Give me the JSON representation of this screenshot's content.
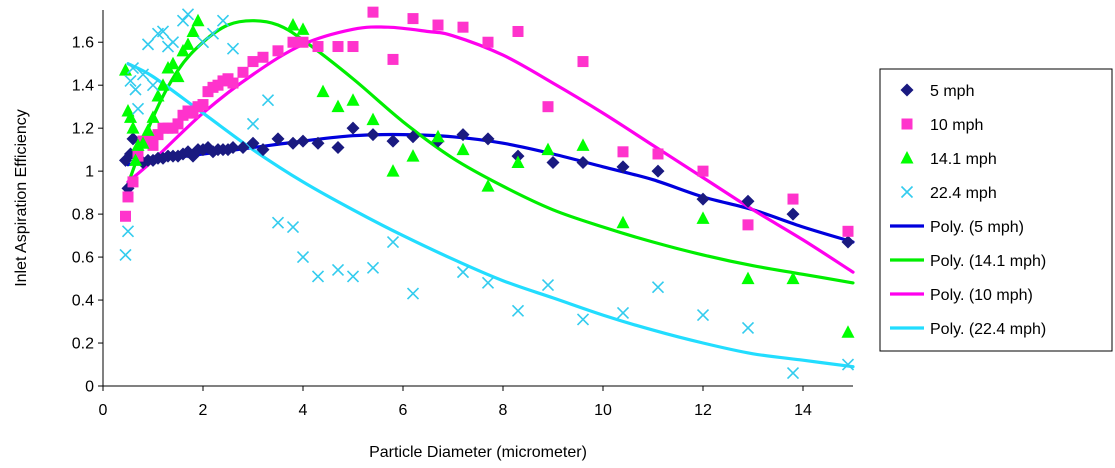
{
  "chart_data": {
    "type": "scatter",
    "xlabel": "Particle Diameter (micrometer)",
    "ylabel": "Inlet Aspiration Efficiency",
    "xlim": [
      0,
      15
    ],
    "ylim": [
      0,
      1.75
    ],
    "x_ticks": [
      0,
      2,
      4,
      6,
      8,
      10,
      12,
      14
    ],
    "x_tick_labels": [
      "0",
      "2",
      "4",
      "6",
      "8",
      "10",
      "12",
      "14"
    ],
    "y_ticks": [
      0,
      0.2,
      0.4,
      0.6,
      0.8,
      1.0,
      1.2,
      1.4,
      1.6
    ],
    "y_tick_labels": [
      "0",
      "0.2",
      "0.4",
      "0.6",
      "0.8",
      "1",
      "1.2",
      "1.4",
      "1.6"
    ],
    "grid": false,
    "legend_position": "right",
    "series": [
      {
        "name": "5 mph",
        "kind": "scatter",
        "marker": "diamond",
        "color": "#1a1a80",
        "points": [
          [
            0.45,
            1.05
          ],
          [
            0.5,
            0.92
          ],
          [
            0.55,
            1.08
          ],
          [
            0.6,
            1.15
          ],
          [
            0.7,
            1.06
          ],
          [
            0.8,
            1.04
          ],
          [
            0.9,
            1.05
          ],
          [
            1.0,
            1.05
          ],
          [
            1.1,
            1.06
          ],
          [
            1.2,
            1.06
          ],
          [
            1.3,
            1.07
          ],
          [
            1.4,
            1.07
          ],
          [
            1.5,
            1.07
          ],
          [
            1.6,
            1.08
          ],
          [
            1.7,
            1.09
          ],
          [
            1.8,
            1.07
          ],
          [
            1.9,
            1.1
          ],
          [
            2.0,
            1.1
          ],
          [
            2.1,
            1.11
          ],
          [
            2.2,
            1.09
          ],
          [
            2.3,
            1.1
          ],
          [
            2.4,
            1.1
          ],
          [
            2.5,
            1.1
          ],
          [
            2.6,
            1.11
          ],
          [
            2.8,
            1.11
          ],
          [
            3.0,
            1.13
          ],
          [
            3.2,
            1.1
          ],
          [
            3.5,
            1.15
          ],
          [
            3.8,
            1.13
          ],
          [
            4.0,
            1.14
          ],
          [
            4.3,
            1.13
          ],
          [
            4.7,
            1.11
          ],
          [
            5.0,
            1.2
          ],
          [
            5.4,
            1.17
          ],
          [
            5.8,
            1.14
          ],
          [
            6.2,
            1.16
          ],
          [
            6.7,
            1.14
          ],
          [
            7.2,
            1.17
          ],
          [
            7.7,
            1.15
          ],
          [
            8.3,
            1.07
          ],
          [
            9.0,
            1.04
          ],
          [
            9.6,
            1.04
          ],
          [
            10.4,
            1.02
          ],
          [
            11.1,
            1.0
          ],
          [
            12.0,
            0.87
          ],
          [
            12.9,
            0.86
          ],
          [
            13.8,
            0.8
          ],
          [
            14.9,
            0.67
          ]
        ]
      },
      {
        "name": "10 mph",
        "kind": "scatter",
        "marker": "square",
        "color": "#ff33cc",
        "points": [
          [
            0.45,
            0.79
          ],
          [
            0.5,
            0.88
          ],
          [
            0.6,
            0.95
          ],
          [
            0.7,
            1.07
          ],
          [
            0.8,
            1.14
          ],
          [
            0.9,
            1.15
          ],
          [
            1.0,
            1.12
          ],
          [
            1.1,
            1.17
          ],
          [
            1.2,
            1.2
          ],
          [
            1.3,
            1.2
          ],
          [
            1.4,
            1.2
          ],
          [
            1.5,
            1.22
          ],
          [
            1.6,
            1.26
          ],
          [
            1.7,
            1.28
          ],
          [
            1.8,
            1.27
          ],
          [
            1.9,
            1.3
          ],
          [
            2.0,
            1.31
          ],
          [
            2.1,
            1.37
          ],
          [
            2.2,
            1.39
          ],
          [
            2.3,
            1.4
          ],
          [
            2.4,
            1.42
          ],
          [
            2.5,
            1.43
          ],
          [
            2.6,
            1.41
          ],
          [
            2.8,
            1.46
          ],
          [
            3.0,
            1.51
          ],
          [
            3.2,
            1.53
          ],
          [
            3.5,
            1.56
          ],
          [
            3.8,
            1.6
          ],
          [
            4.0,
            1.6
          ],
          [
            4.3,
            1.58
          ],
          [
            4.7,
            1.58
          ],
          [
            5.0,
            1.58
          ],
          [
            5.4,
            1.74
          ],
          [
            5.8,
            1.52
          ],
          [
            6.2,
            1.71
          ],
          [
            6.7,
            1.68
          ],
          [
            7.2,
            1.67
          ],
          [
            7.7,
            1.6
          ],
          [
            8.3,
            1.65
          ],
          [
            8.9,
            1.3
          ],
          [
            9.6,
            1.51
          ],
          [
            10.4,
            1.09
          ],
          [
            11.1,
            1.08
          ],
          [
            12.0,
            1.0
          ],
          [
            12.9,
            0.75
          ],
          [
            13.8,
            0.87
          ],
          [
            14.9,
            0.72
          ]
        ]
      },
      {
        "name": "14.1 mph",
        "kind": "scatter",
        "marker": "triangle",
        "color": "#00ff00",
        "points": [
          [
            0.45,
            1.47
          ],
          [
            0.5,
            1.28
          ],
          [
            0.55,
            1.25
          ],
          [
            0.6,
            1.2
          ],
          [
            0.65,
            1.05
          ],
          [
            0.7,
            1.12
          ],
          [
            0.8,
            1.13
          ],
          [
            0.9,
            1.19
          ],
          [
            1.0,
            1.25
          ],
          [
            1.1,
            1.35
          ],
          [
            1.2,
            1.4
          ],
          [
            1.3,
            1.48
          ],
          [
            1.4,
            1.5
          ],
          [
            1.5,
            1.44
          ],
          [
            1.6,
            1.56
          ],
          [
            1.7,
            1.59
          ],
          [
            1.8,
            1.65
          ],
          [
            1.9,
            1.7
          ],
          [
            3.8,
            1.68
          ],
          [
            4.0,
            1.66
          ],
          [
            4.4,
            1.37
          ],
          [
            4.7,
            1.3
          ],
          [
            5.0,
            1.33
          ],
          [
            5.4,
            1.24
          ],
          [
            5.8,
            1.0
          ],
          [
            6.2,
            1.07
          ],
          [
            6.7,
            1.16
          ],
          [
            7.2,
            1.1
          ],
          [
            7.7,
            0.93
          ],
          [
            8.3,
            1.04
          ],
          [
            8.9,
            1.1
          ],
          [
            9.6,
            1.12
          ],
          [
            10.4,
            0.76
          ],
          [
            12.0,
            0.78
          ],
          [
            12.9,
            0.5
          ],
          [
            13.8,
            0.5
          ],
          [
            14.9,
            0.25
          ]
        ]
      },
      {
        "name": "22.4 mph",
        "kind": "scatter",
        "marker": "x",
        "color": "#33ccee",
        "points": [
          [
            0.45,
            0.61
          ],
          [
            0.5,
            0.72
          ],
          [
            0.55,
            1.42
          ],
          [
            0.6,
            1.48
          ],
          [
            0.65,
            1.38
          ],
          [
            0.7,
            1.29
          ],
          [
            0.8,
            1.45
          ],
          [
            0.9,
            1.59
          ],
          [
            1.0,
            1.4
          ],
          [
            1.1,
            1.64
          ],
          [
            1.2,
            1.65
          ],
          [
            1.3,
            1.58
          ],
          [
            1.4,
            1.6
          ],
          [
            1.6,
            1.7
          ],
          [
            1.7,
            1.73
          ],
          [
            2.0,
            1.6
          ],
          [
            2.2,
            1.64
          ],
          [
            2.4,
            1.7
          ],
          [
            2.6,
            1.57
          ],
          [
            3.0,
            1.22
          ],
          [
            3.3,
            1.33
          ],
          [
            3.5,
            0.76
          ],
          [
            3.8,
            0.74
          ],
          [
            4.0,
            0.6
          ],
          [
            4.3,
            0.51
          ],
          [
            4.7,
            0.54
          ],
          [
            5.0,
            0.51
          ],
          [
            5.4,
            0.55
          ],
          [
            5.8,
            0.67
          ],
          [
            6.2,
            0.43
          ],
          [
            7.2,
            0.53
          ],
          [
            7.7,
            0.48
          ],
          [
            8.3,
            0.35
          ],
          [
            8.9,
            0.47
          ],
          [
            9.6,
            0.31
          ],
          [
            10.4,
            0.34
          ],
          [
            11.1,
            0.46
          ],
          [
            12.0,
            0.33
          ],
          [
            12.9,
            0.27
          ],
          [
            13.8,
            0.06
          ],
          [
            14.9,
            0.1
          ]
        ]
      },
      {
        "name": "Poly. (5 mph)",
        "kind": "trendline",
        "color": "#0000dd",
        "points": [
          [
            0.5,
            1.03
          ],
          [
            1.0,
            1.05
          ],
          [
            2.0,
            1.08
          ],
          [
            3.0,
            1.11
          ],
          [
            4.0,
            1.14
          ],
          [
            5.0,
            1.165
          ],
          [
            6.0,
            1.17
          ],
          [
            7.0,
            1.16
          ],
          [
            8.0,
            1.13
          ],
          [
            9.0,
            1.08
          ],
          [
            10.0,
            1.02
          ],
          [
            11.0,
            0.96
          ],
          [
            12.0,
            0.88
          ],
          [
            13.0,
            0.82
          ],
          [
            14.0,
            0.74
          ],
          [
            15.0,
            0.67
          ]
        ]
      },
      {
        "name": "Poly. (14.1 mph)",
        "kind": "trendline",
        "color": "#00ee00",
        "points": [
          [
            0.5,
            0.94
          ],
          [
            1.0,
            1.25
          ],
          [
            1.5,
            1.47
          ],
          [
            2.0,
            1.6
          ],
          [
            2.5,
            1.68
          ],
          [
            3.0,
            1.7
          ],
          [
            3.5,
            1.68
          ],
          [
            4.0,
            1.61
          ],
          [
            5.0,
            1.43
          ],
          [
            6.0,
            1.23
          ],
          [
            7.0,
            1.06
          ],
          [
            8.0,
            0.93
          ],
          [
            9.0,
            0.82
          ],
          [
            10.0,
            0.74
          ],
          [
            11.0,
            0.67
          ],
          [
            12.0,
            0.61
          ],
          [
            13.0,
            0.56
          ],
          [
            14.0,
            0.52
          ],
          [
            15.0,
            0.48
          ]
        ]
      },
      {
        "name": "Poly. (10 mph)",
        "kind": "trendline",
        "color": "#ff00ee",
        "points": [
          [
            0.5,
            0.95
          ],
          [
            1.0,
            1.05
          ],
          [
            2.0,
            1.27
          ],
          [
            3.0,
            1.45
          ],
          [
            4.0,
            1.59
          ],
          [
            5.0,
            1.66
          ],
          [
            5.7,
            1.67
          ],
          [
            6.5,
            1.65
          ],
          [
            7.0,
            1.63
          ],
          [
            8.0,
            1.54
          ],
          [
            9.0,
            1.41
          ],
          [
            10.0,
            1.27
          ],
          [
            11.0,
            1.12
          ],
          [
            12.0,
            0.97
          ],
          [
            13.0,
            0.82
          ],
          [
            14.0,
            0.68
          ],
          [
            15.0,
            0.53
          ]
        ]
      },
      {
        "name": "Poly. (22.4 mph)",
        "kind": "trendline",
        "color": "#22ddff",
        "points": [
          [
            0.5,
            1.5
          ],
          [
            1.0,
            1.44
          ],
          [
            2.0,
            1.27
          ],
          [
            3.0,
            1.1
          ],
          [
            4.0,
            0.95
          ],
          [
            5.0,
            0.82
          ],
          [
            6.0,
            0.7
          ],
          [
            7.0,
            0.59
          ],
          [
            8.0,
            0.49
          ],
          [
            9.0,
            0.41
          ],
          [
            10.0,
            0.33
          ],
          [
            11.0,
            0.26
          ],
          [
            12.0,
            0.2
          ],
          [
            13.0,
            0.15
          ],
          [
            14.0,
            0.12
          ],
          [
            15.0,
            0.09
          ]
        ]
      }
    ]
  }
}
